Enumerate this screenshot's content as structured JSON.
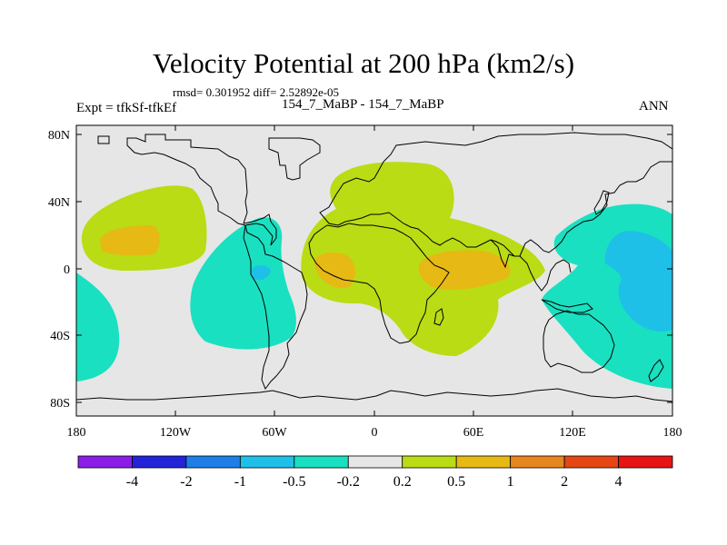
{
  "header": {
    "title": "Velocity Potential at 200 hPa (km2/s)",
    "stats": "rmsd= 0.301952  diff= 2.52892e-05",
    "experiment": "Expt = tfkSf-tfkEf",
    "case_label": "154_7_MaBP - 154_7_MaBP",
    "season": "ANN"
  },
  "axes": {
    "lat_ticks": [
      "80N",
      "40N",
      "0",
      "40S",
      "80S"
    ],
    "lon_ticks": [
      "180",
      "120W",
      "60W",
      "0",
      "60E",
      "120E",
      "180"
    ]
  },
  "colorbar": {
    "labels": [
      "-4",
      "-2",
      "-1",
      "-0.5",
      "-0.2",
      "0.2",
      "0.5",
      "1",
      "2",
      "4"
    ],
    "colors": [
      "#8a1ee6",
      "#2323d8",
      "#1e7ee8",
      "#1ec0e8",
      "#19e0c0",
      "#e6e6e6",
      "#b9dc14",
      "#e6b914",
      "#e6861e",
      "#e64614",
      "#e61414"
    ]
  },
  "colors": {
    "background": "#e6e6e6",
    "positive_weak": "#b9dc14",
    "positive_mid": "#e6b914",
    "negative_weak": "#19e0c0",
    "negative_mid": "#1ec0e8"
  }
}
